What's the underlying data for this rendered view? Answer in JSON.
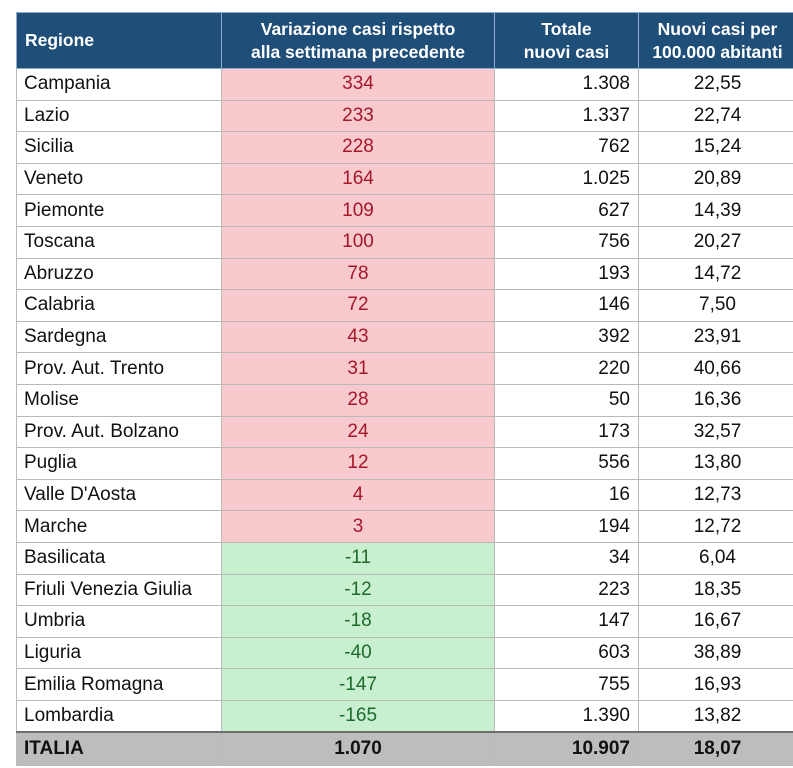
{
  "headers": {
    "regione": "Regione",
    "variazione_line1": "Variazione casi rispetto",
    "variazione_line2": "alla settimana precedente",
    "totale_line1": "Totale",
    "totale_line2": "nuovi casi",
    "nuovi_line1": "Nuovi casi per",
    "nuovi_line2": "100.000 abitanti"
  },
  "rows": [
    {
      "regione": "Campania",
      "variazione": "334",
      "totale": "1.308",
      "per100k": "22,55",
      "trend": "up"
    },
    {
      "regione": "Lazio",
      "variazione": "233",
      "totale": "1.337",
      "per100k": "22,74",
      "trend": "up"
    },
    {
      "regione": "Sicilia",
      "variazione": "228",
      "totale": "762",
      "per100k": "15,24",
      "trend": "up"
    },
    {
      "regione": "Veneto",
      "variazione": "164",
      "totale": "1.025",
      "per100k": "20,89",
      "trend": "up"
    },
    {
      "regione": "Piemonte",
      "variazione": "109",
      "totale": "627",
      "per100k": "14,39",
      "trend": "up"
    },
    {
      "regione": "Toscana",
      "variazione": "100",
      "totale": "756",
      "per100k": "20,27",
      "trend": "up"
    },
    {
      "regione": "Abruzzo",
      "variazione": "78",
      "totale": "193",
      "per100k": "14,72",
      "trend": "up"
    },
    {
      "regione": "Calabria",
      "variazione": "72",
      "totale": "146",
      "per100k": "7,50",
      "trend": "up"
    },
    {
      "regione": "Sardegna",
      "variazione": "43",
      "totale": "392",
      "per100k": "23,91",
      "trend": "up"
    },
    {
      "regione": "Prov. Aut. Trento",
      "variazione": "31",
      "totale": "220",
      "per100k": "40,66",
      "trend": "up"
    },
    {
      "regione": "Molise",
      "variazione": "28",
      "totale": "50",
      "per100k": "16,36",
      "trend": "up"
    },
    {
      "regione": "Prov. Aut. Bolzano",
      "variazione": "24",
      "totale": "173",
      "per100k": "32,57",
      "trend": "up"
    },
    {
      "regione": "Puglia",
      "variazione": "12",
      "totale": "556",
      "per100k": "13,80",
      "trend": "up"
    },
    {
      "regione": "Valle D'Aosta",
      "variazione": "4",
      "totale": "16",
      "per100k": "12,73",
      "trend": "up"
    },
    {
      "regione": "Marche",
      "variazione": "3",
      "totale": "194",
      "per100k": "12,72",
      "trend": "up"
    },
    {
      "regione": "Basilicata",
      "variazione": "-11",
      "totale": "34",
      "per100k": "6,04",
      "trend": "down"
    },
    {
      "regione": "Friuli Venezia Giulia",
      "variazione": "-12",
      "totale": "223",
      "per100k": "18,35",
      "trend": "down"
    },
    {
      "regione": "Umbria",
      "variazione": "-18",
      "totale": "147",
      "per100k": "16,67",
      "trend": "down"
    },
    {
      "regione": "Liguria",
      "variazione": "-40",
      "totale": "603",
      "per100k": "38,89",
      "trend": "down"
    },
    {
      "regione": "Emilia Romagna",
      "variazione": "-147",
      "totale": "755",
      "per100k": "16,93",
      "trend": "down"
    },
    {
      "regione": "Lombardia",
      "variazione": "-165",
      "totale": "1.390",
      "per100k": "13,82",
      "trend": "down"
    }
  ],
  "total": {
    "regione": "ITALIA",
    "variazione": "1.070",
    "totale": "10.907",
    "per100k": "18,07"
  },
  "colors": {
    "header_bg": "#1f4e79",
    "positive_bg": "#f8c9cd",
    "positive_text": "#a5172a",
    "negative_bg": "#c8efcf",
    "negative_text": "#1f6b2c",
    "total_bg": "#bdbdbd"
  }
}
